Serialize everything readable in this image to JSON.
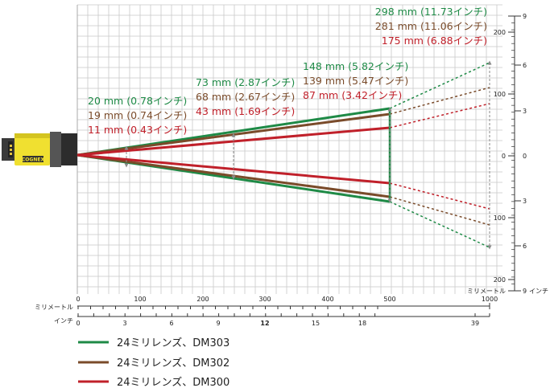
{
  "colors": {
    "dm303": "#1e8a46",
    "dm302": "#7a4b2a",
    "dm300": "#c0202a",
    "grid": "#c8c8c8",
    "dim_arrow": "#8a8a8a"
  },
  "device": {
    "brand": "COGNEX"
  },
  "annotations": {
    "d0": {
      "dm303": "20 mm (0.78インチ)",
      "dm302": "19 mm (0.74インチ)",
      "dm300": "11 mm (0.43インチ)"
    },
    "d1": {
      "dm303": "73 mm (2.87インチ)",
      "dm302": "68 mm (2.67インチ)",
      "dm300": "43 mm (1.69インチ)"
    },
    "d2": {
      "dm303": "148 mm (5.82インチ)",
      "dm302": "139 mm (5.47インチ)",
      "dm300": "87 mm (3.42インチ)"
    },
    "d3": {
      "dm303": "298 mm (11.73インチ)",
      "dm302": "281 mm (11.06インチ)",
      "dm300": "175 mm (6.88インチ)"
    }
  },
  "bottom_axis": {
    "mm_label": "ミリメートル",
    "inch_label": "インチ",
    "mm_ticks": [
      "0",
      "100",
      "200",
      "300",
      "400",
      "500",
      "1000"
    ],
    "inch_ticks": [
      "0",
      "3",
      "6",
      "9",
      "12",
      "15",
      "18",
      "39"
    ]
  },
  "right_axis": {
    "mm_label": "ミリメートル",
    "inch_label": "インチ",
    "mm_ticks": [
      "200",
      "100",
      "0",
      "100",
      "200"
    ],
    "inch_ticks": [
      "9",
      "6",
      "3",
      "0",
      "3",
      "6",
      "9"
    ]
  },
  "legend": [
    {
      "label": "24ミリレンズ、DM303",
      "color": "#1e8a46"
    },
    {
      "label": "24ミリレンズ、DM302",
      "color": "#7a4b2a"
    },
    {
      "label": "24ミリレンズ、DM300",
      "color": "#c0202a"
    }
  ]
}
